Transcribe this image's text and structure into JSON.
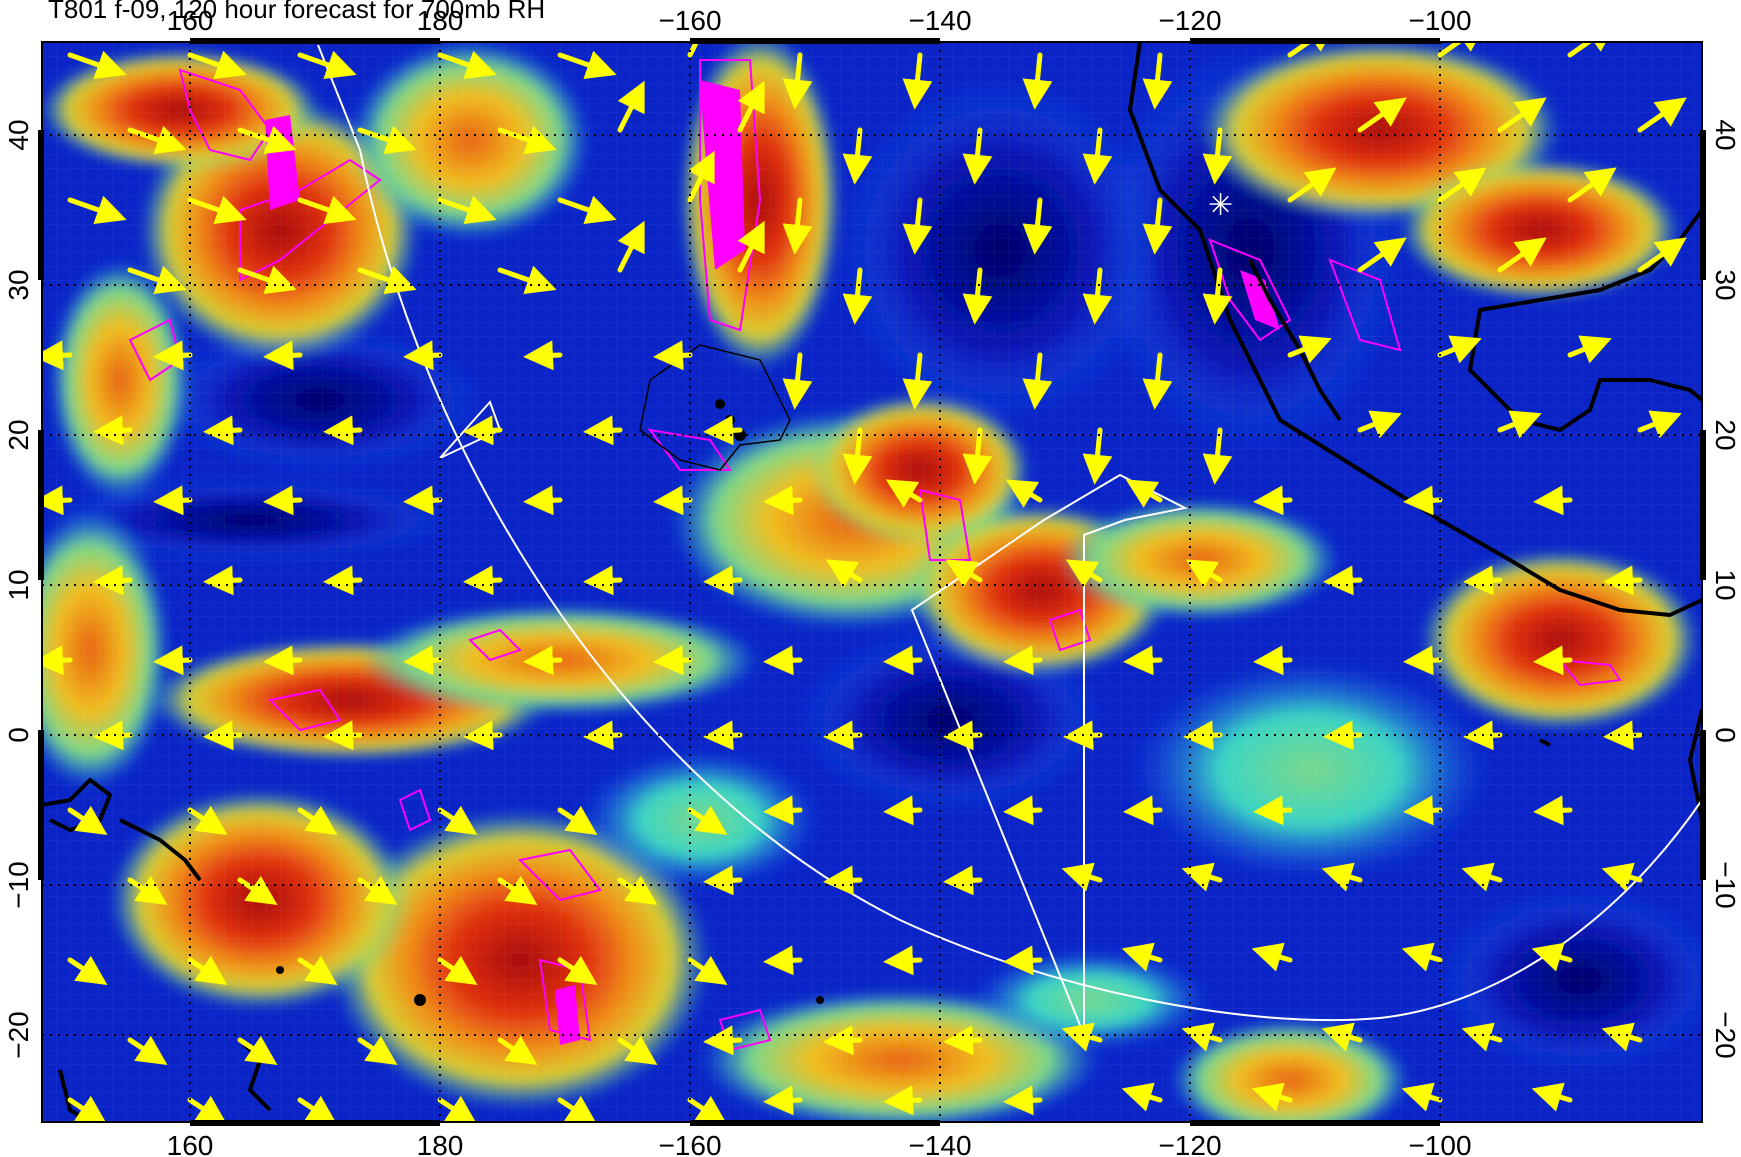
{
  "title": "T801 f-09, 120 hour forecast for 700mb RH",
  "axes": {
    "x_ticks": [
      "160",
      "180",
      "−160",
      "−140",
      "−120",
      "−100"
    ],
    "y_ticks": [
      "−20",
      "−10",
      "0",
      "10",
      "20",
      "30",
      "40"
    ]
  },
  "colors": {
    "background": "#ffffff",
    "relative_humidity_scale": [
      "#00007a",
      "#0a1fd0",
      "#1560f0",
      "#18a8e8",
      "#3ad6c4",
      "#7bd88a",
      "#c8d83a",
      "#f0c020",
      "#f07a10",
      "#d82810",
      "#a80c0c"
    ],
    "wind_vectors": "#ffff00",
    "contours_magenta": "#ff00ff",
    "coastlines": "#000000",
    "flight_track": "#ffffff",
    "gridlines": "#000000"
  }
}
